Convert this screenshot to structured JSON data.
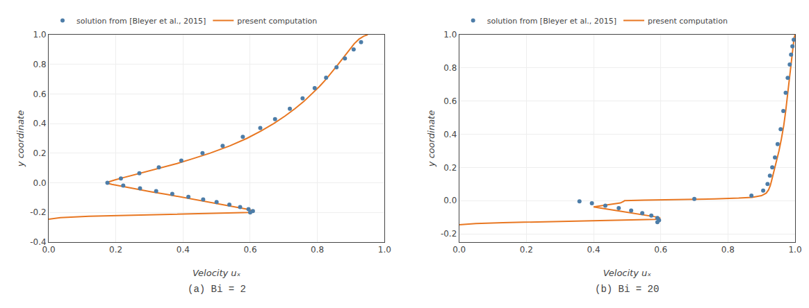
{
  "chart_data": [
    {
      "type": "line",
      "title": "(a) Bi = 2",
      "xlabel": "Velocity uₓ",
      "ylabel": "y coordinate",
      "xlim": [
        0.0,
        1.0
      ],
      "xticks": [
        {
          "value": 0.0,
          "label": "0.0"
        },
        0.2,
        0.4,
        0.6,
        0.8,
        {
          "value": 1.0,
          "label": "1.0"
        }
      ],
      "ylim": [
        -0.4,
        1.0
      ],
      "yticks": [
        -0.4,
        -0.2,
        {
          "value": 0.0,
          "label": "0.0"
        },
        0.2,
        0.4,
        0.6,
        0.8,
        {
          "value": 1.0,
          "label": "1.0"
        }
      ],
      "grid": true,
      "legend": "top",
      "series": [
        {
          "name": "present computation",
          "type": "line",
          "color": "#E87722",
          "x": [
            0.0,
            0.035,
            0.12,
            0.25,
            0.38,
            0.46,
            0.52,
            0.565,
            0.598,
            0.61,
            0.607,
            0.59,
            0.56,
            0.525,
            0.485,
            0.443,
            0.398,
            0.352,
            0.305,
            0.26,
            0.218,
            0.188,
            0.17,
            0.183,
            0.198,
            0.222,
            0.248,
            0.284,
            0.335,
            0.382,
            0.425,
            0.48,
            0.54,
            0.59,
            0.632,
            0.67,
            0.703,
            0.733,
            0.76,
            0.784,
            0.806,
            0.826,
            0.845,
            0.862,
            0.879,
            0.896,
            0.91,
            0.924,
            0.938,
            0.95
          ],
          "y": [
            -0.245,
            -0.235,
            -0.225,
            -0.218,
            -0.212,
            -0.208,
            -0.205,
            -0.202,
            -0.2,
            -0.195,
            -0.188,
            -0.178,
            -0.165,
            -0.15,
            -0.133,
            -0.115,
            -0.097,
            -0.078,
            -0.06,
            -0.042,
            -0.025,
            -0.01,
            0.0,
            0.01,
            0.02,
            0.035,
            0.05,
            0.07,
            0.1,
            0.13,
            0.16,
            0.2,
            0.25,
            0.3,
            0.35,
            0.4,
            0.45,
            0.5,
            0.55,
            0.6,
            0.65,
            0.7,
            0.75,
            0.8,
            0.85,
            0.9,
            0.94,
            0.97,
            0.99,
            1.0
          ]
        },
        {
          "name": "solution from [Bleyer et al., 2015]",
          "type": "scatter",
          "marker": "circle",
          "color": "#4d7da8",
          "x": [
            0.6,
            0.608,
            0.595,
            0.57,
            0.538,
            0.5,
            0.46,
            0.416,
            0.368,
            0.32,
            0.272,
            0.222,
            0.175,
            0.215,
            0.27,
            0.328,
            0.395,
            0.458,
            0.518,
            0.578,
            0.63,
            0.674,
            0.718,
            0.756,
            0.792,
            0.826,
            0.857,
            0.882,
            0.908,
            0.93
          ],
          "y": [
            -0.2,
            -0.19,
            -0.178,
            -0.163,
            -0.147,
            -0.13,
            -0.112,
            -0.094,
            -0.075,
            -0.056,
            -0.037,
            -0.018,
            0.0,
            0.03,
            0.065,
            0.105,
            0.15,
            0.2,
            0.25,
            0.31,
            0.37,
            0.43,
            0.5,
            0.57,
            0.64,
            0.71,
            0.78,
            0.84,
            0.9,
            0.95
          ]
        }
      ]
    },
    {
      "type": "line",
      "title": "(b) Bi = 20",
      "xlabel": "Velocity uₓ",
      "ylabel": "y coordinate",
      "xlim": [
        0.0,
        1.0
      ],
      "xticks": [
        {
          "value": 0.0,
          "label": "0.0"
        },
        0.2,
        0.4,
        0.6,
        0.8,
        {
          "value": 1.0,
          "label": "1.0"
        }
      ],
      "ylim": [
        -0.25,
        1.0
      ],
      "yticks": [
        -0.2,
        {
          "value": 0.0,
          "label": "0.0"
        },
        0.2,
        0.4,
        0.6,
        0.8,
        {
          "value": 1.0,
          "label": "1.0"
        }
      ],
      "grid": true,
      "legend": "top",
      "series": [
        {
          "name": "present computation",
          "type": "line",
          "color": "#E87722",
          "x": [
            0.0,
            0.05,
            0.13,
            0.245,
            0.36,
            0.44,
            0.505,
            0.548,
            0.582,
            0.597,
            0.597,
            0.588,
            0.568,
            0.54,
            0.508,
            0.474,
            0.438,
            0.4,
            0.438,
            0.48,
            0.49,
            0.492,
            0.55,
            0.66,
            0.76,
            0.832,
            0.872,
            0.9,
            0.914,
            0.921,
            0.926,
            0.93,
            0.935,
            0.94,
            0.946,
            0.952,
            0.959,
            0.966,
            0.972,
            0.977,
            0.982,
            0.986,
            0.989,
            0.992,
            0.995,
            0.997,
            1.0
          ],
          "y": [
            -0.145,
            -0.138,
            -0.133,
            -0.128,
            -0.124,
            -0.121,
            -0.118,
            -0.116,
            -0.113,
            -0.109,
            -0.105,
            -0.099,
            -0.092,
            -0.083,
            -0.073,
            -0.062,
            -0.05,
            -0.038,
            -0.026,
            -0.014,
            -0.004,
            0.0,
            0.003,
            0.006,
            0.01,
            0.015,
            0.02,
            0.03,
            0.045,
            0.065,
            0.09,
            0.12,
            0.16,
            0.2,
            0.25,
            0.3,
            0.37,
            0.45,
            0.54,
            0.63,
            0.72,
            0.8,
            0.86,
            0.91,
            0.95,
            0.98,
            1.0
          ]
        },
        {
          "name": "solution from [Bleyer et al., 2015]",
          "type": "scatter",
          "marker": "circle",
          "color": "#4d7da8",
          "x": [
            0.59,
            0.595,
            0.59,
            0.572,
            0.545,
            0.512,
            0.475,
            0.435,
            0.395,
            0.358,
            0.7,
            0.87,
            0.905,
            0.918,
            0.925,
            0.932,
            0.94,
            0.948,
            0.957,
            0.965,
            0.972,
            0.978,
            0.984,
            0.988,
            0.992,
            0.996
          ],
          "y": [
            -0.13,
            -0.118,
            -0.105,
            -0.09,
            -0.075,
            -0.06,
            -0.045,
            -0.03,
            -0.016,
            -0.004,
            0.01,
            0.03,
            0.06,
            0.1,
            0.15,
            0.2,
            0.26,
            0.34,
            0.43,
            0.54,
            0.65,
            0.74,
            0.82,
            0.88,
            0.93,
            0.97
          ]
        }
      ]
    }
  ]
}
